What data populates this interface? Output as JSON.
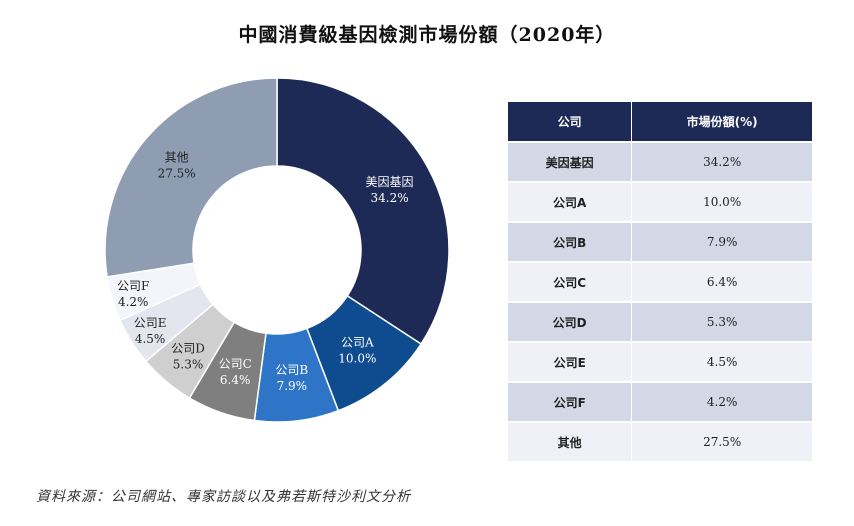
{
  "title": "中國消費級基因檢測市場份額（2020年）",
  "chart_data": {
    "type": "pie",
    "title": "中國消費級基因檢測市場份額（2020年）",
    "donut": true,
    "slices": [
      {
        "label": "美因基因",
        "value": 34.2,
        "value_text": "34.2%",
        "color": "#1e2a56",
        "text_color": "#ffffff"
      },
      {
        "label": "公司A",
        "value": 10.0,
        "value_text": "10.0%",
        "color": "#0f4b8f",
        "text_color": "#ffffff"
      },
      {
        "label": "公司B",
        "value": 7.9,
        "value_text": "7.9%",
        "color": "#2e75c8",
        "text_color": "#ffffff"
      },
      {
        "label": "公司C",
        "value": 6.4,
        "value_text": "6.4%",
        "color": "#7f7f7f",
        "text_color": "#ffffff"
      },
      {
        "label": "公司D",
        "value": 5.3,
        "value_text": "5.3%",
        "color": "#cfcfcf",
        "text_color": "#222222"
      },
      {
        "label": "公司E",
        "value": 4.5,
        "value_text": "4.5%",
        "color": "#e3e6ee",
        "text_color": "#222222"
      },
      {
        "label": "公司F",
        "value": 4.2,
        "value_text": "4.2%",
        "color": "#f3f5fa",
        "text_color": "#222222"
      },
      {
        "label": "其他",
        "value": 27.5,
        "value_text": "27.5%",
        "color": "#8e9db2",
        "text_color": "#222222"
      }
    ]
  },
  "table": {
    "headers": [
      "公司",
      "市場份額(%)"
    ],
    "rows": [
      [
        "美因基因",
        "34.2%"
      ],
      [
        "公司A",
        "10.0%"
      ],
      [
        "公司B",
        "7.9%"
      ],
      [
        "公司C",
        "6.4%"
      ],
      [
        "公司D",
        "5.3%"
      ],
      [
        "公司E",
        "4.5%"
      ],
      [
        "公司F",
        "4.2%"
      ],
      [
        "其他",
        "27.5%"
      ]
    ]
  },
  "source": "資料來源：公司網站、專家訪談以及弗若斯特沙利文分析"
}
